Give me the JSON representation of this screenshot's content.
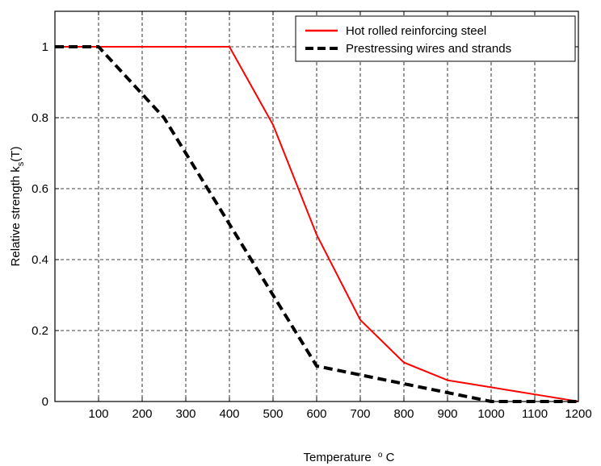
{
  "chart_data": {
    "type": "line",
    "title": "",
    "xlabel": "Temperature",
    "xlabel_unit": "oC",
    "ylabel": "Relative strength k",
    "ylabel_subscript": "s",
    "ylabel_suffix": "(T)",
    "xlim": [
      0,
      1200
    ],
    "ylim": [
      0,
      1.1
    ],
    "x_ticks": [
      100,
      200,
      300,
      400,
      500,
      600,
      700,
      800,
      900,
      1000,
      1100,
      1200
    ],
    "y_ticks": [
      0,
      0.2,
      0.4,
      0.6,
      0.8,
      1
    ],
    "grid": true,
    "legend_position": "top-right",
    "series": [
      {
        "name": "Hot rolled reinforcing steel",
        "color": "#ff0000",
        "style": "solid",
        "x": [
          0,
          100,
          200,
          300,
          400,
          500,
          600,
          700,
          800,
          900,
          1000,
          1100,
          1200
        ],
        "y": [
          1,
          1,
          1,
          1,
          1,
          0.78,
          0.47,
          0.23,
          0.11,
          0.06,
          0.04,
          0.02,
          0
        ]
      },
      {
        "name": "Prestressing wires and strands",
        "color": "#000000",
        "style": "dashed",
        "x": [
          0,
          100,
          250,
          400,
          500,
          600,
          700,
          800,
          900,
          1000,
          1100,
          1200
        ],
        "y": [
          1,
          1,
          0.8,
          0.5,
          0.3,
          0.1,
          0.075,
          0.05,
          0.025,
          0,
          0,
          0
        ]
      }
    ]
  }
}
